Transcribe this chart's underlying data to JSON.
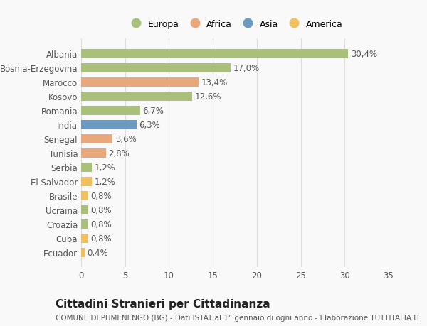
{
  "categories": [
    "Albania",
    "Bosnia-Erzegovina",
    "Marocco",
    "Kosovo",
    "Romania",
    "India",
    "Senegal",
    "Tunisia",
    "Serbia",
    "El Salvador",
    "Brasile",
    "Ucraina",
    "Croazia",
    "Cuba",
    "Ecuador"
  ],
  "values": [
    30.4,
    17.0,
    13.4,
    12.6,
    6.7,
    6.3,
    3.6,
    2.8,
    1.2,
    1.2,
    0.8,
    0.8,
    0.8,
    0.8,
    0.4
  ],
  "labels": [
    "30,4%",
    "17,0%",
    "13,4%",
    "12,6%",
    "6,7%",
    "6,3%",
    "3,6%",
    "2,8%",
    "1,2%",
    "1,2%",
    "0,8%",
    "0,8%",
    "0,8%",
    "0,8%",
    "0,4%"
  ],
  "colors": [
    "#a8c07a",
    "#a8c07a",
    "#e8a87c",
    "#a8c07a",
    "#a8c07a",
    "#6c9bbf",
    "#e8a87c",
    "#e8a87c",
    "#a8c07a",
    "#f0c060",
    "#f0c060",
    "#a8c07a",
    "#a8c07a",
    "#f0c060",
    "#f0c060"
  ],
  "legend_labels": [
    "Europa",
    "Africa",
    "Asia",
    "America"
  ],
  "legend_colors": [
    "#a8c07a",
    "#e8a87c",
    "#6c9bbf",
    "#f0c060"
  ],
  "title": "Cittadini Stranieri per Cittadinanza",
  "subtitle": "COMUNE DI PUMENENGO (BG) - Dati ISTAT al 1° gennaio di ogni anno - Elaborazione TUTTITALIA.IT",
  "xlim": [
    0,
    35
  ],
  "xticks": [
    0,
    5,
    10,
    15,
    20,
    25,
    30,
    35
  ],
  "background_color": "#f9f9f9",
  "grid_color": "#dddddd",
  "bar_height": 0.65,
  "label_fontsize": 8.5,
  "tick_fontsize": 8.5,
  "title_fontsize": 11,
  "subtitle_fontsize": 7.5
}
